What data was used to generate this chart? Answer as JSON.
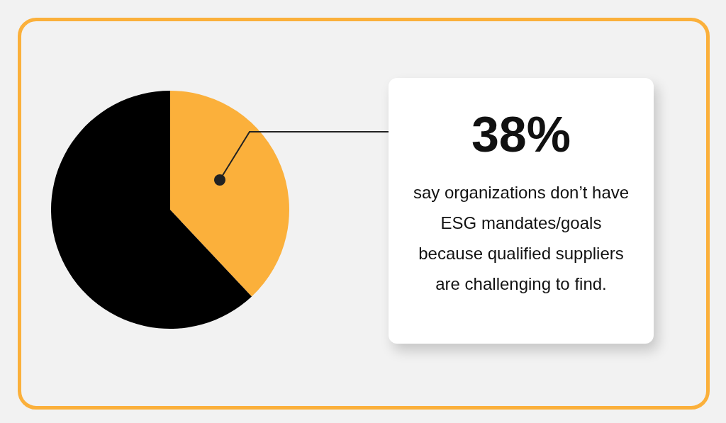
{
  "chart_data": {
    "type": "pie",
    "categories": [
      null,
      null
    ],
    "values": [
      38,
      62
    ],
    "colors": [
      "#fbb03b",
      "#000000"
    ],
    "annotations": [
      "38%",
      "say organizations don’t have ESG mandates/goals because qualified suppliers are challenging to find."
    ]
  }
}
